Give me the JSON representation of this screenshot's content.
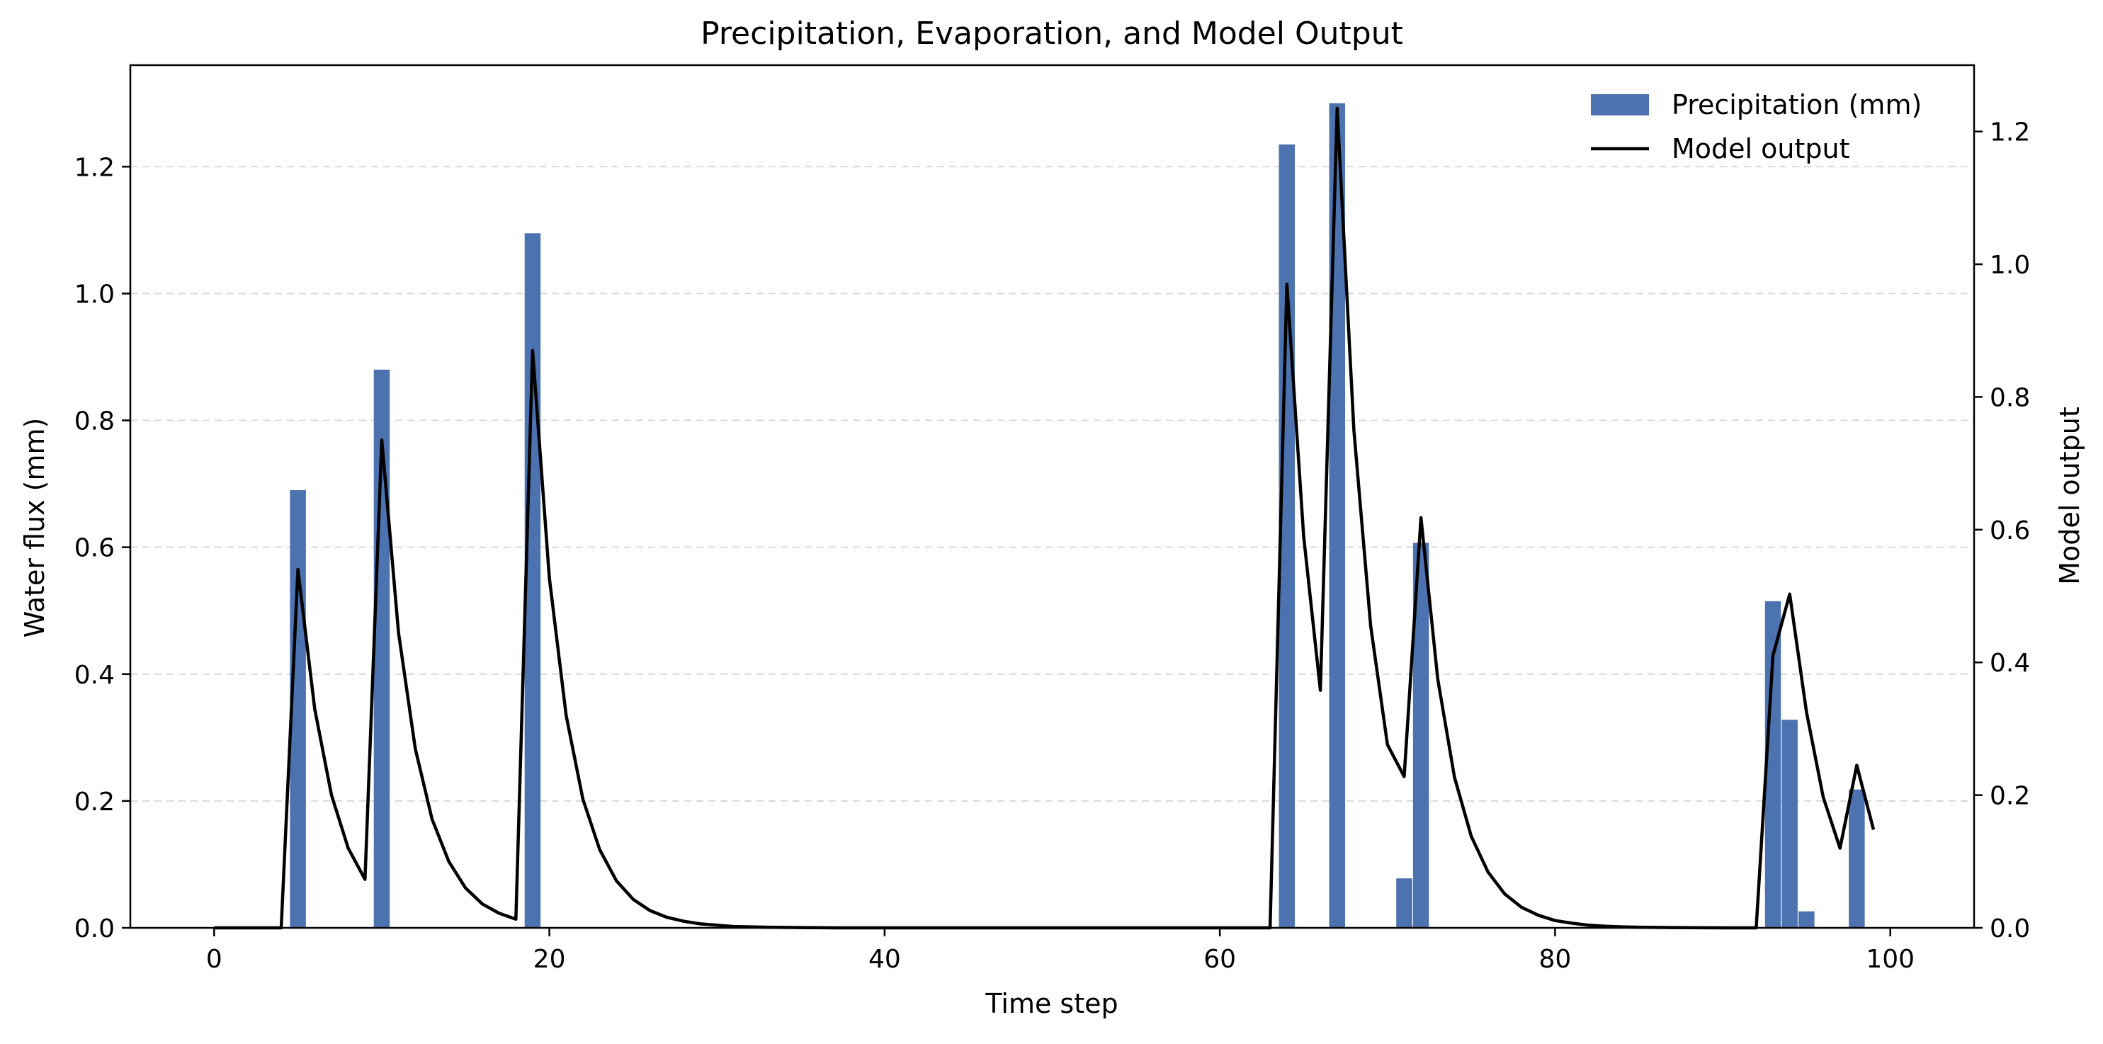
{
  "chart_data": {
    "type": "bar+line",
    "title": "Precipitation, Evaporation, and Model Output",
    "xlabel": "Time step",
    "ylabel": "Water flux (mm)",
    "y2label": "Model output",
    "xlim": [
      -5,
      105
    ],
    "ylim": [
      0,
      1.36
    ],
    "y2lim": [
      0,
      1.3
    ],
    "xticks": [
      0,
      20,
      40,
      60,
      80,
      100
    ],
    "yticks": [
      0.0,
      0.2,
      0.4,
      0.6,
      0.8,
      1.0,
      1.2
    ],
    "y2ticks": [
      0.0,
      0.2,
      0.4,
      0.6,
      0.8,
      1.0,
      1.2
    ],
    "ygrid": true,
    "legend_position": "top-right",
    "legend": [
      {
        "label": "Precipitation (mm)",
        "kind": "bar",
        "color": "#4c72b0"
      },
      {
        "label": "Model output",
        "kind": "line",
        "color": "#000000"
      }
    ],
    "precipitation": {
      "name": "Precipitation (mm)",
      "color": "#4c72b0",
      "axis": "left",
      "x": [
        5,
        10,
        19,
        64,
        67,
        71,
        72,
        93,
        94,
        95,
        98
      ],
      "values": [
        0.69,
        0.88,
        1.095,
        1.235,
        1.3,
        0.078,
        0.607,
        0.515,
        0.328,
        0.026,
        0.218
      ]
    },
    "model_output": {
      "name": "Model output",
      "color": "#000000",
      "axis": "right",
      "x": [
        0,
        1,
        2,
        3,
        4,
        5,
        6,
        7,
        8,
        9,
        10,
        11,
        12,
        13,
        14,
        15,
        16,
        17,
        18,
        19,
        20,
        21,
        22,
        23,
        24,
        25,
        26,
        27,
        28,
        29,
        30,
        31,
        32,
        33,
        34,
        35,
        36,
        37,
        38,
        39,
        40,
        41,
        42,
        43,
        44,
        45,
        46,
        47,
        48,
        49,
        50,
        51,
        52,
        53,
        54,
        55,
        56,
        57,
        58,
        59,
        60,
        61,
        62,
        63,
        64,
        65,
        66,
        67,
        68,
        69,
        70,
        71,
        72,
        73,
        74,
        75,
        76,
        77,
        78,
        79,
        80,
        81,
        82,
        83,
        84,
        85,
        86,
        87,
        88,
        89,
        90,
        91,
        92,
        93,
        94,
        95,
        96,
        97,
        98,
        99
      ],
      "values": [
        0,
        0,
        0,
        0,
        0,
        0.54,
        0.33,
        0.2,
        0.12,
        0.073,
        0.735,
        0.445,
        0.27,
        0.164,
        0.1,
        0.06,
        0.036,
        0.022,
        0.013,
        0.87,
        0.527,
        0.32,
        0.194,
        0.118,
        0.071,
        0.043,
        0.026,
        0.016,
        0.01,
        0.006,
        0.004,
        0.002,
        0.0015,
        0.001,
        0.0006,
        0.0004,
        0.0002,
        0,
        0,
        0,
        0,
        0,
        0,
        0,
        0,
        0,
        0,
        0,
        0,
        0,
        0,
        0,
        0,
        0,
        0,
        0,
        0,
        0,
        0,
        0,
        0,
        0,
        0,
        0,
        0.97,
        0.59,
        0.358,
        1.235,
        0.75,
        0.455,
        0.276,
        0.228,
        0.618,
        0.375,
        0.227,
        0.138,
        0.084,
        0.051,
        0.031,
        0.019,
        0.011,
        0.007,
        0.004,
        0.0025,
        0.0015,
        0.001,
        0.0006,
        0.0004,
        0.0002,
        0.0001,
        0,
        0,
        0,
        0.41,
        0.503,
        0.325,
        0.197,
        0.12,
        0.245,
        0.148
      ]
    }
  }
}
